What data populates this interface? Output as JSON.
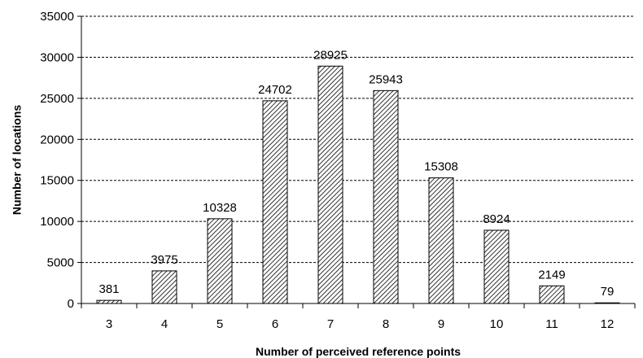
{
  "chart_data": {
    "type": "bar",
    "title": "",
    "xlabel": "Number of perceived reference points",
    "ylabel": "Number of locations",
    "categories": [
      "3",
      "4",
      "5",
      "6",
      "7",
      "8",
      "9",
      "10",
      "11",
      "12"
    ],
    "values": [
      381,
      3975,
      10328,
      24702,
      28925,
      25943,
      15308,
      8924,
      2149,
      79
    ],
    "data_labels": [
      "381",
      "3975",
      "10328",
      "24702",
      "28925",
      "25943",
      "15308",
      "8924",
      "2149",
      "79"
    ],
    "ylim": [
      0,
      35000
    ],
    "yticks": [
      0,
      5000,
      10000,
      15000,
      20000,
      25000,
      30000,
      35000
    ],
    "ytick_labels": [
      "0",
      "5000",
      "10000",
      "15000",
      "20000",
      "25000",
      "30000",
      "35000"
    ],
    "grid": true,
    "grid_style": "dashed horizontal",
    "bar_fill": "diagonal hatch",
    "colors": {
      "bar_stroke": "#000000",
      "hatch": "#000000",
      "grid": "#000000",
      "axis": "#000000"
    },
    "legend": false
  }
}
